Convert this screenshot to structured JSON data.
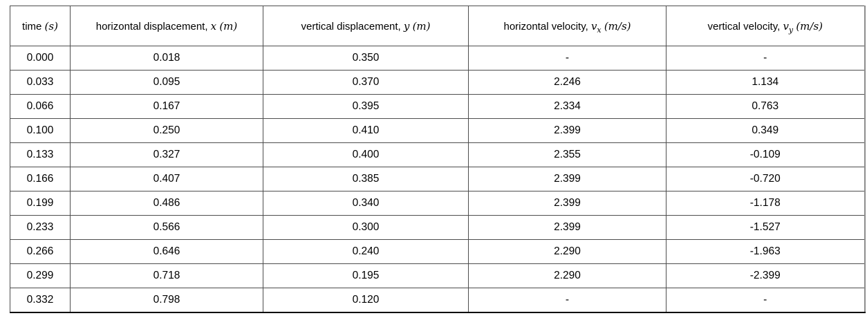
{
  "table": {
    "columns": [
      {
        "key": "time",
        "label": "time",
        "symbol": "",
        "sub": "",
        "unit": "(s)"
      },
      {
        "key": "x",
        "label": "horizontal displacement,",
        "symbol": "x",
        "sub": "",
        "unit": "(m)"
      },
      {
        "key": "y",
        "label": "vertical displacement,",
        "symbol": "y",
        "sub": "",
        "unit": "(m)"
      },
      {
        "key": "vx",
        "label": "horizontal velocity,",
        "symbol": "v",
        "sub": "x",
        "unit": "(m/s)"
      },
      {
        "key": "vy",
        "label": "vertical velocity,",
        "symbol": "v",
        "sub": "y",
        "unit": "(m/s)"
      }
    ],
    "rows": [
      [
        "0.000",
        "0.018",
        "0.350",
        "-",
        "-"
      ],
      [
        "0.033",
        "0.095",
        "0.370",
        "2.246",
        "1.134"
      ],
      [
        "0.066",
        "0.167",
        "0.395",
        "2.334",
        "0.763"
      ],
      [
        "0.100",
        "0.250",
        "0.410",
        "2.399",
        "0.349"
      ],
      [
        "0.133",
        "0.327",
        "0.400",
        "2.355",
        "-0.109"
      ],
      [
        "0.166",
        "0.407",
        "0.385",
        "2.399",
        "-0.720"
      ],
      [
        "0.199",
        "0.486",
        "0.340",
        "2.399",
        "-1.178"
      ],
      [
        "0.233",
        "0.566",
        "0.300",
        "2.399",
        "-1.527"
      ],
      [
        "0.266",
        "0.646",
        "0.240",
        "2.290",
        "-1.963"
      ],
      [
        "0.299",
        "0.718",
        "0.195",
        "2.290",
        "-2.399"
      ],
      [
        "0.332",
        "0.798",
        "0.120",
        "-",
        "-"
      ]
    ],
    "colors": {
      "border_inner": "#4d4d4d",
      "border_bottom": "#000000",
      "background": "#ffffff",
      "text": "#000000"
    }
  },
  "chart_data": {
    "type": "table",
    "title": "",
    "columns": [
      "time (s)",
      "horizontal displacement, x (m)",
      "vertical displacement, y (m)",
      "horizontal velocity, vx (m/s)",
      "vertical velocity, vy (m/s)"
    ],
    "rows": [
      [
        "0.000",
        "0.018",
        "0.350",
        "-",
        "-"
      ],
      [
        "0.033",
        "0.095",
        "0.370",
        "2.246",
        "1.134"
      ],
      [
        "0.066",
        "0.167",
        "0.395",
        "2.334",
        "0.763"
      ],
      [
        "0.100",
        "0.250",
        "0.410",
        "2.399",
        "0.349"
      ],
      [
        "0.133",
        "0.327",
        "0.400",
        "2.355",
        "-0.109"
      ],
      [
        "0.166",
        "0.407",
        "0.385",
        "2.399",
        "-0.720"
      ],
      [
        "0.199",
        "0.486",
        "0.340",
        "2.399",
        "-1.178"
      ],
      [
        "0.233",
        "0.566",
        "0.300",
        "2.399",
        "-1.527"
      ],
      [
        "0.266",
        "0.646",
        "0.240",
        "2.290",
        "-1.963"
      ],
      [
        "0.299",
        "0.718",
        "0.195",
        "2.290",
        "-2.399"
      ],
      [
        "0.332",
        "0.798",
        "0.120",
        "-",
        "-"
      ]
    ]
  }
}
